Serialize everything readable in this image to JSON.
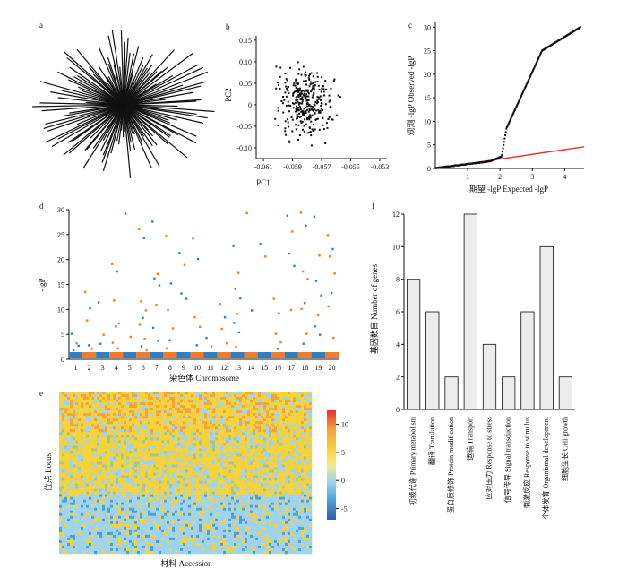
{
  "panel_labels": {
    "a": "a",
    "b": "b",
    "c": "c",
    "d": "d",
    "e": "e",
    "f": "f"
  },
  "colors": {
    "orange": "#ef7c2a",
    "blue": "#2f7fc1",
    "red": "#e8322b",
    "bar_fill": "#ececec",
    "axis": "#111111"
  },
  "chart_data": [
    {
      "id": "a",
      "type": "tree",
      "description_visible": "unrooted radial tree of accessions",
      "branch_count": 120
    },
    {
      "id": "b",
      "type": "scatter",
      "xlabel": "PC1",
      "ylabel": "PC2",
      "xlim": [
        -0.0615,
        -0.0525
      ],
      "ylim": [
        -0.125,
        0.16
      ],
      "xticks": [
        "-0.061",
        "-0.059",
        "-0.057",
        "-0.055",
        "-0.053"
      ],
      "xtick_values": [
        -0.061,
        -0.059,
        -0.057,
        -0.055,
        -0.053
      ],
      "yticks": [
        "0.15",
        "0.10",
        "0.05",
        "0",
        "-0.05",
        "-0.10"
      ],
      "ytick_values": [
        0.15,
        0.1,
        0.05,
        0,
        -0.05,
        -0.1
      ],
      "n_points": 320
    },
    {
      "id": "c",
      "type": "scatter",
      "xlabel": "期望 -lgP Expected -lgP",
      "ylabel": "观测 -lgP Observed -lgP",
      "xlim": [
        0,
        4.6
      ],
      "ylim": [
        0,
        31
      ],
      "xticks": [
        "1",
        "2",
        "3",
        "4"
      ],
      "xtick_values": [
        1,
        2,
        3,
        4
      ],
      "yticks": [
        "0",
        "5",
        "10",
        "15",
        "20",
        "25",
        "30"
      ],
      "ytick_values": [
        0,
        5,
        10,
        15,
        20,
        25,
        30
      ],
      "reference_line": {
        "x": [
          0,
          4.6
        ],
        "y": [
          0,
          4.6
        ]
      }
    },
    {
      "id": "d",
      "type": "scatter",
      "xlabel": "染色体 Chromosome",
      "ylabel": "-lgP",
      "ylim": [
        0,
        30
      ],
      "yticks": [
        "0",
        "5",
        "10",
        "15",
        "20",
        "25",
        "30"
      ],
      "ytick_values": [
        0,
        5,
        10,
        15,
        20,
        25,
        30
      ],
      "categories": [
        "1",
        "2",
        "3",
        "4",
        "5",
        "6",
        "7",
        "8",
        "9",
        "10",
        "11",
        "12",
        "13",
        "14",
        "15",
        "16",
        "17",
        "18",
        "19",
        "20"
      ],
      "series": [
        {
          "chromosome": "1",
          "values": [
            5.1,
            3.2,
            1.8,
            2.7
          ]
        },
        {
          "chromosome": "2",
          "values": [
            13.5,
            10.2,
            7.8,
            2.1,
            2.8
          ]
        },
        {
          "chromosome": "3",
          "values": [
            11.4,
            4.9,
            3.1
          ]
        },
        {
          "chromosome": "4",
          "values": [
            19.1,
            17.6,
            11.8,
            7.2,
            6.6,
            3.3,
            2.2
          ]
        },
        {
          "chromosome": "5",
          "values": [
            29.2,
            4.5
          ]
        },
        {
          "chromosome": "6",
          "values": [
            26.1,
            24.3,
            11.6,
            9.8,
            8.3,
            6.9,
            4.1,
            2.6,
            1.8
          ]
        },
        {
          "chromosome": "7",
          "values": [
            27.6,
            17.1,
            16.2,
            14.8,
            10.9,
            6.3,
            3.7
          ]
        },
        {
          "chromosome": "8",
          "values": [
            24.7,
            15.2,
            9.9,
            6.2,
            3.8,
            2.2
          ]
        },
        {
          "chromosome": "9",
          "values": [
            21.3,
            18.9,
            13.2,
            12.1
          ]
        },
        {
          "chromosome": "10",
          "values": [
            24.2,
            20.1,
            8.4,
            6.5,
            2.8
          ]
        },
        {
          "chromosome": "11",
          "values": [
            4.3,
            2.6
          ]
        },
        {
          "chromosome": "12",
          "values": [
            11.1,
            8.4,
            6.1,
            3.2
          ]
        },
        {
          "chromosome": "13",
          "values": [
            22.7,
            17.3,
            14.1,
            12.2,
            9.1,
            7.3,
            5.4,
            2.5
          ]
        },
        {
          "chromosome": "14",
          "values": [
            29.3,
            9.8
          ]
        },
        {
          "chromosome": "15",
          "values": [
            23.1,
            20.6
          ]
        },
        {
          "chromosome": "16",
          "values": [
            12.1,
            9.2,
            5.1,
            3.4,
            2.1
          ]
        },
        {
          "chromosome": "17",
          "values": [
            28.8,
            25.6,
            21.2,
            18.7,
            9.9
          ]
        },
        {
          "chromosome": "18",
          "values": [
            29.4,
            26.8,
            17.6,
            16.1,
            11.3,
            10.1,
            5.1,
            3.1
          ]
        },
        {
          "chromosome": "19",
          "values": [
            28.6,
            20.8,
            15.7,
            12.8,
            8.8,
            6.6,
            4.9
          ]
        },
        {
          "chromosome": "20",
          "values": [
            24.9,
            22.1,
            20.6,
            17.2,
            13.3,
            10.6,
            4.3
          ]
        }
      ]
    },
    {
      "id": "e",
      "type": "heatmap",
      "xlabel": "材料 Accession",
      "ylabel": "位点 Locus",
      "colorbar_ticks": [
        "10",
        "5",
        "0",
        "-5"
      ],
      "colorbar_values": [
        10,
        5,
        0,
        -5
      ],
      "color_range": [
        -7,
        12.5
      ],
      "dominant_colors": [
        "#f6d23b",
        "#9fd3f0",
        "#f2a53a",
        "#4aa3d8",
        "#a9c78a"
      ]
    },
    {
      "id": "f",
      "type": "bar",
      "ylabel": "基因数目 Number of genes",
      "ylim": [
        0,
        12
      ],
      "yticks": [
        "0",
        "2",
        "4",
        "6",
        "8",
        "10",
        "12"
      ],
      "ytick_values": [
        0,
        2,
        4,
        6,
        8,
        10,
        12
      ],
      "categories": [
        "初级代谢 Primary metabolism",
        "翻译 Translation",
        "蛋白质修饰 Protein modification",
        "运输 Transport",
        "应对压力 Response to stress",
        "信号传导 Signal transduction",
        "刺激反应 Response to stimulus",
        "个体发育 Organismal development",
        "细胞生长 Cell growth"
      ],
      "values": [
        8,
        6,
        2,
        12,
        4,
        2,
        6,
        10,
        2
      ]
    }
  ]
}
